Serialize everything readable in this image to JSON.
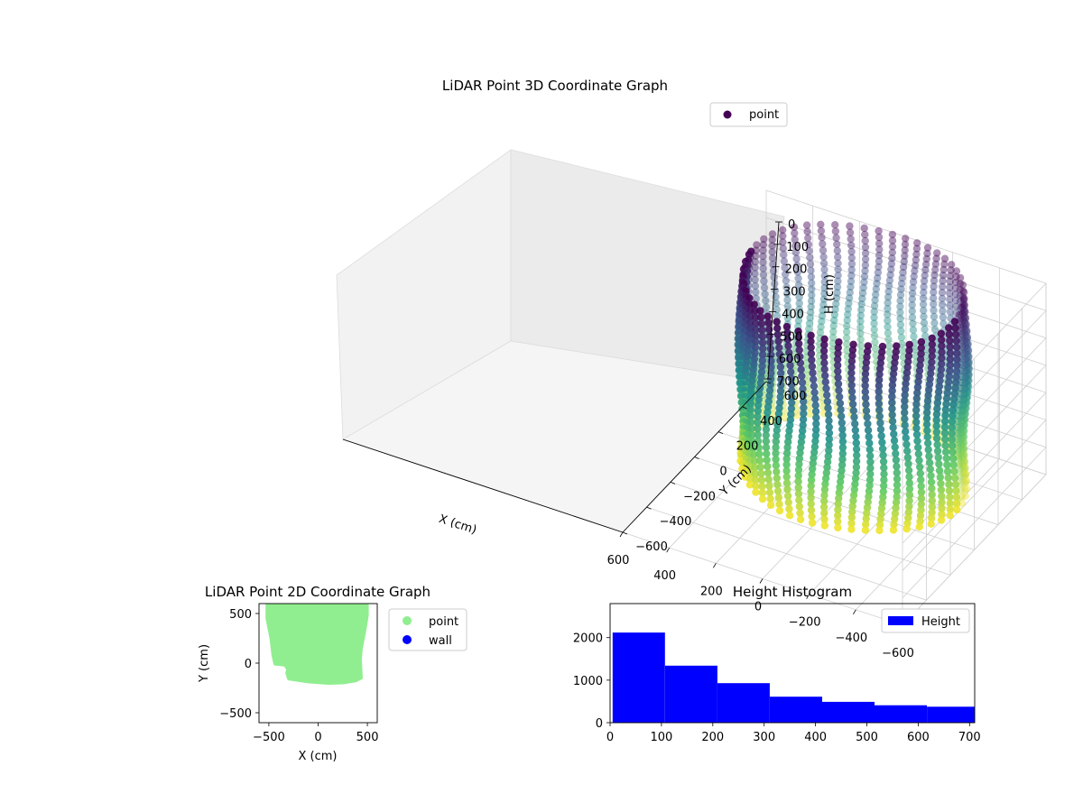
{
  "chart_data": [
    {
      "type": "scatter",
      "projection": "3d",
      "title": "LiDAR Point 3D Coordinate Graph",
      "xlabel": "X (cm)",
      "ylabel": "Y (cm)",
      "zlabel": "H (cm)",
      "xlim": [
        -600,
        600
      ],
      "ylim": [
        -600,
        600
      ],
      "zlim": [
        0,
        700
      ],
      "zaxis_inverted": true,
      "x_ticks": [
        "−600",
        "−400",
        "−200",
        "0",
        "200",
        "400",
        "600"
      ],
      "y_ticks": [
        "−600",
        "−400",
        "−200",
        "0",
        "200",
        "400",
        "600"
      ],
      "z_ticks": [
        "0",
        "100",
        "200",
        "300",
        "400",
        "500",
        "600",
        "700"
      ],
      "colormap": "viridis",
      "grid": true,
      "legend": {
        "position": "top-right",
        "entries": [
          {
            "label": "point",
            "color": "#440154"
          }
        ]
      },
      "series": [
        {
          "name": "point",
          "shape": "open cylinder of wall points, radius ~450 cm, heights 0 to 700 cm, colored by height",
          "x_range": [
            -450,
            480
          ],
          "y_range": [
            -200,
            600
          ],
          "h_range": [
            0,
            700
          ]
        }
      ]
    },
    {
      "type": "scatter",
      "title": "LiDAR Point 2D Coordinate Graph",
      "xlabel": "X (cm)",
      "ylabel": "Y (cm)",
      "xlim": [
        -600,
        600
      ],
      "ylim": [
        -600,
        600
      ],
      "x_ticks": [
        "−500",
        "0",
        "500"
      ],
      "y_ticks": [
        "500",
        "0",
        "−500"
      ],
      "legend": {
        "position": "outside-right",
        "entries": [
          {
            "label": "point",
            "color": "#90ee90"
          },
          {
            "label": "wall",
            "color": "#0000ff"
          }
        ]
      },
      "series": [
        {
          "name": "point",
          "color": "#90ee90",
          "outline": [
            [
              -520,
              600
            ],
            [
              500,
              600
            ],
            [
              500,
              480
            ],
            [
              470,
              300
            ],
            [
              440,
              150
            ],
            [
              430,
              40
            ],
            [
              440,
              -150
            ],
            [
              380,
              -180
            ],
            [
              250,
              -200
            ],
            [
              100,
              -205
            ],
            [
              -100,
              -190
            ],
            [
              -300,
              -160
            ],
            [
              -320,
              -100
            ],
            [
              -310,
              -60
            ],
            [
              -340,
              -20
            ],
            [
              -440,
              -10
            ],
            [
              -460,
              80
            ],
            [
              -480,
              250
            ],
            [
              -520,
              450
            ]
          ]
        },
        {
          "name": "wall",
          "color": "#0000ff",
          "points": []
        }
      ]
    },
    {
      "type": "bar",
      "subtype": "histogram",
      "title": "Height Histogram",
      "xlabel": "",
      "ylabel": "",
      "xlim": [
        0,
        710
      ],
      "ylim": [
        0,
        2800
      ],
      "x_ticks": [
        "0",
        "100",
        "200",
        "300",
        "400",
        "500",
        "600",
        "700"
      ],
      "y_ticks": [
        "0",
        "1000",
        "2000"
      ],
      "bar_color": "#0000ff",
      "legend": {
        "position": "top-right",
        "entries": [
          {
            "label": "Height",
            "color": "#0000ff"
          }
        ]
      },
      "bins": [
        [
          5,
          107
        ],
        [
          107,
          209
        ],
        [
          209,
          311
        ],
        [
          311,
          413
        ],
        [
          413,
          515
        ],
        [
          515,
          617
        ],
        [
          617,
          719
        ]
      ],
      "values": [
        2120,
        1340,
        930,
        610,
        490,
        410,
        375
      ]
    }
  ]
}
